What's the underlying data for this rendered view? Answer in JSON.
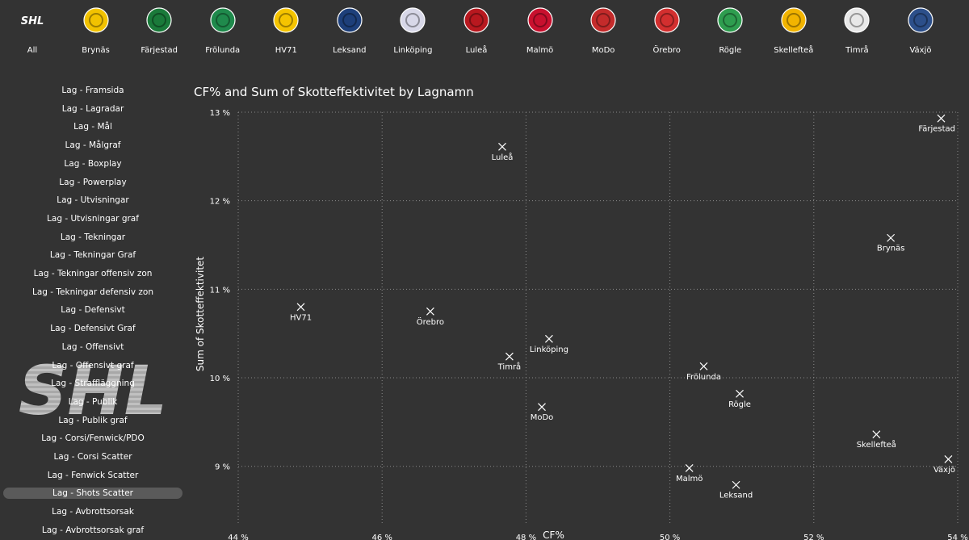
{
  "teams_nav": [
    {
      "label": "All",
      "icon": "shl-logo-icon",
      "active": true
    },
    {
      "label": "Brynäs",
      "icon": "brynas-logo-icon",
      "color": "#f2c200"
    },
    {
      "label": "Färjestad",
      "icon": "farjestad-logo-icon",
      "color": "#1a7a3a"
    },
    {
      "label": "Frölunda",
      "icon": "frolunda-logo-icon",
      "color": "#1f8a4c"
    },
    {
      "label": "HV71",
      "icon": "hv71-logo-icon",
      "color": "#f5c400"
    },
    {
      "label": "Leksand",
      "icon": "leksand-logo-icon",
      "color": "#1d3f7a"
    },
    {
      "label": "Linköping",
      "icon": "linkoping-logo-icon",
      "color": "#d8d8e8"
    },
    {
      "label": "Luleå",
      "icon": "lulea-logo-icon",
      "color": "#b8181f"
    },
    {
      "label": "Malmö",
      "icon": "malmo-logo-icon",
      "color": "#c8102e"
    },
    {
      "label": "MoDo",
      "icon": "modo-logo-icon",
      "color": "#c42b2b"
    },
    {
      "label": "Örebro",
      "icon": "orebro-logo-icon",
      "color": "#d32f2f"
    },
    {
      "label": "Rögle",
      "icon": "rogle-logo-icon",
      "color": "#2e9d4f"
    },
    {
      "label": "Skellefteå",
      "icon": "skelleftea-logo-icon",
      "color": "#f2b400"
    },
    {
      "label": "Timrå",
      "icon": "timra-logo-icon",
      "color": "#e8e8e8"
    },
    {
      "label": "Växjö",
      "icon": "vaxjo-logo-icon",
      "color": "#2c4f8a"
    }
  ],
  "sidebar": {
    "watermark": "SHL",
    "active_index": 22,
    "items": [
      "Lag - Framsida",
      "Lag - Lagradar",
      "Lag - Mål",
      "Lag - Målgraf",
      "Lag - Boxplay",
      "Lag - Powerplay",
      "Lag - Utvisningar",
      "Lag - Utvisningar graf",
      "Lag - Tekningar",
      "Lag - Tekningar Graf",
      "Lag - Tekningar offensiv zon",
      "Lag - Tekningar defensiv zon",
      "Lag - Defensivt",
      "Lag - Defensivt Graf",
      "Lag - Offensivt",
      "Lag - Offensivt graf",
      "Lag - Straffläggning",
      "Lag - Publik",
      "Lag - Publik graf",
      "Lag - Corsi/Fenwick/PDO",
      "Lag - Corsi Scatter",
      "Lag - Fenwick Scatter",
      "Lag - Shots Scatter",
      "Lag - Avbrottsorsak",
      "Lag - Avbrottsorsak graf"
    ]
  },
  "chart_data": {
    "type": "scatter",
    "title": "CF% and Sum of Skotteffektivitet by Lagnamn",
    "xlabel": "CF%",
    "ylabel": "Sum of Skotteffektivitet",
    "xlim": [
      44,
      54
    ],
    "ylim": [
      8.35,
      13
    ],
    "xticks": [
      44,
      46,
      48,
      50,
      52,
      54
    ],
    "yticks": [
      9,
      10,
      11,
      12,
      13
    ],
    "tick_suffix": " %",
    "grid": true,
    "marker": "x",
    "marker_color": "#ffffff",
    "points": [
      {
        "label": "Färjestad",
        "x": 53.77,
        "y": 12.93
      },
      {
        "label": "Luleå",
        "x": 47.67,
        "y": 12.61
      },
      {
        "label": "Brynäs",
        "x": 53.07,
        "y": 11.58
      },
      {
        "label": "HV71",
        "x": 44.87,
        "y": 10.8
      },
      {
        "label": "Örebro",
        "x": 46.67,
        "y": 10.75
      },
      {
        "label": "Linköping",
        "x": 48.32,
        "y": 10.44
      },
      {
        "label": "Timrå",
        "x": 47.77,
        "y": 10.24
      },
      {
        "label": "Frölunda",
        "x": 50.47,
        "y": 10.13
      },
      {
        "label": "Rögle",
        "x": 50.97,
        "y": 9.82
      },
      {
        "label": "MoDo",
        "x": 48.22,
        "y": 9.67
      },
      {
        "label": "Skellefteå",
        "x": 52.87,
        "y": 9.36
      },
      {
        "label": "Växjö",
        "x": 53.87,
        "y": 9.08
      },
      {
        "label": "Malmö",
        "x": 50.27,
        "y": 8.98
      },
      {
        "label": "Leksand",
        "x": 50.92,
        "y": 8.79
      }
    ]
  }
}
